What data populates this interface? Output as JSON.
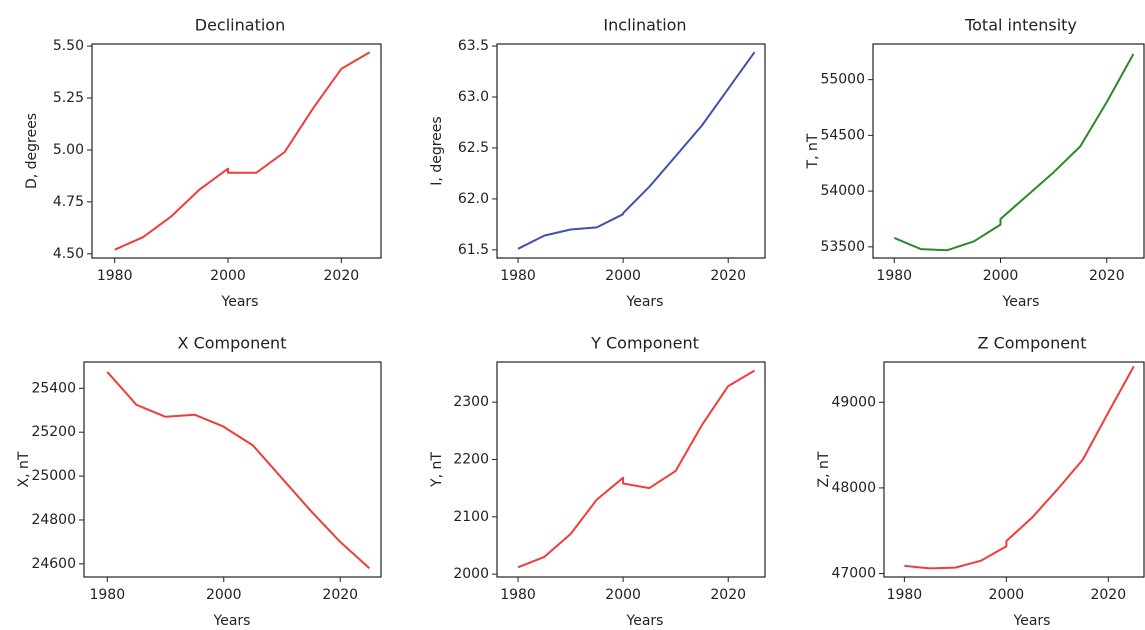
{
  "chart_data": [
    {
      "type": "line",
      "title": "Declination",
      "xlabel": "Years",
      "ylabel": "D, degrees",
      "color": "#f03c3c",
      "x": [
        1980,
        1985,
        1990,
        1995,
        2000,
        2000,
        2005,
        2010,
        2015,
        2020,
        2025
      ],
      "values": [
        4.52,
        4.58,
        4.68,
        4.81,
        4.91,
        4.89,
        4.89,
        4.99,
        5.2,
        5.39,
        5.47
      ],
      "xlim": [
        1976,
        2027
      ],
      "xticks": [
        1980,
        2000,
        2020
      ],
      "ylim": [
        4.48,
        5.51
      ],
      "yticks": [
        {
          "value": 4.5,
          "label": "4.50"
        },
        4.75,
        {
          "value": 5.0,
          "label": "5.00"
        },
        5.25,
        {
          "value": 5.5,
          "label": "5.50"
        }
      ]
    },
    {
      "type": "line",
      "title": "Inclination",
      "xlabel": "Years",
      "ylabel": "I, degrees",
      "color": "#4050b0",
      "x": [
        1980,
        1985,
        1990,
        1995,
        2000,
        2000,
        2005,
        2010,
        2015,
        2020,
        2025
      ],
      "values": [
        61.51,
        61.64,
        61.7,
        61.72,
        61.85,
        61.86,
        62.12,
        62.42,
        62.72,
        63.08,
        63.44
      ],
      "xlim": [
        1976,
        2027
      ],
      "xticks": [
        1980,
        2000,
        2020
      ],
      "ylim": [
        61.42,
        63.52
      ],
      "yticks": [
        61.5,
        {
          "value": 62.0,
          "label": "62.0"
        },
        62.5,
        {
          "value": 63.0,
          "label": "63.0"
        },
        63.5
      ]
    },
    {
      "type": "line",
      "title": "Total intensity",
      "xlabel": "Years",
      "ylabel": "T, nT",
      "color": "#2a8a2a",
      "x": [
        1980,
        1985,
        1990,
        1995,
        2000,
        2000,
        2005,
        2010,
        2015,
        2020,
        2025
      ],
      "values": [
        53580,
        53480,
        53470,
        53550,
        53700,
        53750,
        53960,
        54170,
        54400,
        54800,
        55230
      ],
      "xlim": [
        1976,
        2027
      ],
      "xticks": [
        1980,
        2000,
        2020
      ],
      "ylim": [
        53400,
        55320
      ],
      "yticks": [
        53500,
        54000,
        54500,
        55000
      ]
    },
    {
      "type": "line",
      "title": "X Component",
      "xlabel": "Years",
      "ylabel": "X, nT",
      "color": "#f03c3c",
      "x": [
        1980,
        1985,
        1990,
        1995,
        2000,
        2000,
        2005,
        2010,
        2015,
        2020,
        2025
      ],
      "values": [
        25475,
        25325,
        25270,
        25280,
        25225,
        25224,
        25140,
        24990,
        24840,
        24700,
        24580
      ],
      "xlim": [
        1976,
        2027
      ],
      "xticks": [
        1980,
        2000,
        2020
      ],
      "ylim": [
        24540,
        25520
      ],
      "yticks": [
        24600,
        24800,
        25000,
        25200,
        25400
      ]
    },
    {
      "type": "line",
      "title": "Y Component",
      "xlabel": "Years",
      "ylabel": "Y, nT",
      "color": "#f03c3c",
      "x": [
        1980,
        1985,
        1990,
        1995,
        2000,
        2000,
        2005,
        2010,
        2015,
        2020,
        2025
      ],
      "values": [
        2012,
        2030,
        2070,
        2130,
        2168,
        2158,
        2150,
        2180,
        2260,
        2328,
        2355
      ],
      "xlim": [
        1976,
        2027
      ],
      "xticks": [
        1980,
        2000,
        2020
      ],
      "ylim": [
        1995,
        2370
      ],
      "yticks": [
        2000,
        2100,
        2200,
        2300
      ]
    },
    {
      "type": "line",
      "title": "Z Component",
      "xlabel": "Years",
      "ylabel": "Z, nT",
      "color": "#f03c3c",
      "x": [
        1980,
        1985,
        1990,
        1995,
        2000,
        2000,
        2005,
        2010,
        2015,
        2020,
        2025
      ],
      "values": [
        47090,
        47060,
        47070,
        47150,
        47320,
        47380,
        47650,
        47980,
        48330,
        48880,
        49420
      ],
      "xlim": [
        1976,
        2027
      ],
      "xticks": [
        1980,
        2000,
        2020
      ],
      "ylim": [
        46960,
        49470
      ],
      "yticks": [
        47000,
        48000,
        49000
      ]
    }
  ]
}
